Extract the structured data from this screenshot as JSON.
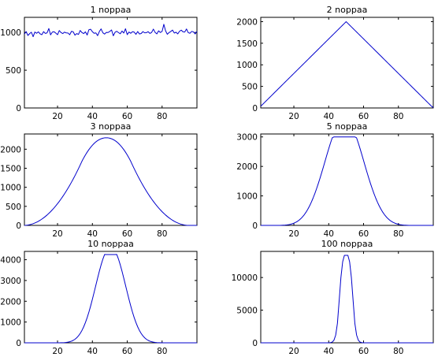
{
  "figure": {
    "colors": {
      "line": "#0000cc",
      "axes": "#000000",
      "background": "#ffffff"
    }
  },
  "chart_data": [
    {
      "type": "line",
      "title": "1 noppaa",
      "xlim": [
        1,
        100
      ],
      "ylim": [
        0,
        1200
      ],
      "xticks": [
        20,
        40,
        60,
        80
      ],
      "yticks": [
        0,
        500,
        1000
      ],
      "grid": false,
      "series": [
        {
          "x_start": 1,
          "x_step": 1,
          "values": [
            978,
            1012,
            960,
            985,
            1003,
            944,
            1006,
            989,
            1008,
            982,
            970,
            1011,
            987,
            994,
            1052,
            968,
            1004,
            1009,
            991,
            970,
            1025,
            998,
            985,
            1004,
            994,
            992,
            970,
            1015,
            1008,
            964,
            985,
            974,
            1026,
            999,
            985,
            1008,
            966,
            1036,
            1042,
            1010,
            989,
            994,
            958,
            1012,
            1047,
            996,
            978,
            1001,
            999,
            1014,
            1033,
            956,
            1002,
            1015,
            998,
            983,
            1019,
            992,
            1049,
            971,
            1005,
            989,
            1010,
            1004,
            975,
            1012,
            980,
            986,
            1011,
            995,
            997,
            1010,
            987,
            1000,
            1044,
            1001,
            981,
            1021,
            999,
            1014,
            1108,
            1021,
            976,
            999,
            1013,
            1031,
            992,
            1003,
            981,
            1016,
            1030,
            1008,
            1005,
            1046,
            997,
            989,
            1014,
            1007,
            980,
            1014
          ]
        }
      ]
    },
    {
      "type": "line",
      "title": "2 noppaa",
      "xlim": [
        1,
        100
      ],
      "ylim": [
        0,
        2100
      ],
      "xticks": [
        20,
        40,
        60,
        80
      ],
      "yticks": [
        0,
        500,
        1000,
        1500,
        2000
      ],
      "grid": false,
      "series": [
        {
          "x_start": 1,
          "x_step": 1,
          "values": [
            40,
            80,
            120,
            160,
            200,
            240,
            280,
            320,
            360,
            400,
            440,
            480,
            520,
            560,
            600,
            640,
            680,
            720,
            760,
            800,
            840,
            880,
            920,
            960,
            1000,
            1040,
            1080,
            1120,
            1160,
            1200,
            1240,
            1280,
            1320,
            1360,
            1400,
            1440,
            1480,
            1520,
            1560,
            1600,
            1640,
            1680,
            1720,
            1760,
            1800,
            1840,
            1880,
            1920,
            1960,
            2000,
            1960,
            1920,
            1880,
            1840,
            1800,
            1760,
            1720,
            1680,
            1640,
            1600,
            1560,
            1520,
            1480,
            1440,
            1400,
            1360,
            1320,
            1280,
            1240,
            1200,
            1160,
            1120,
            1080,
            1040,
            1000,
            960,
            920,
            880,
            840,
            800,
            760,
            720,
            680,
            640,
            600,
            560,
            520,
            480,
            440,
            400,
            360,
            320,
            280,
            240,
            200,
            160,
            120,
            80,
            40,
            10
          ]
        }
      ]
    },
    {
      "type": "line",
      "title": "3 noppaa",
      "xlim": [
        1,
        100
      ],
      "ylim": [
        0,
        2400
      ],
      "xticks": [
        20,
        40,
        60,
        80
      ],
      "yticks": [
        0,
        500,
        1000,
        1500,
        2000
      ],
      "grid": false,
      "series": [
        {
          "x_start": 1,
          "x_step": 1,
          "values": [
            0,
            3,
            9,
            18,
            30,
            45,
            63,
            84,
            108,
            135,
            165,
            198,
            234,
            273,
            315,
            360,
            408,
            459,
            513,
            570,
            630,
            693,
            759,
            828,
            900,
            975,
            1053,
            1134,
            1218,
            1305,
            1395,
            1488,
            1584,
            1683,
            1770,
            1850,
            1923,
            1990,
            2050,
            2104,
            2151,
            2192,
            2226,
            2253,
            2274,
            2289,
            2298,
            2300,
            2298,
            2289,
            2274,
            2253,
            2226,
            2192,
            2151,
            2104,
            2050,
            1990,
            1923,
            1850,
            1770,
            1683,
            1584,
            1488,
            1395,
            1305,
            1218,
            1134,
            1053,
            975,
            900,
            828,
            759,
            693,
            630,
            570,
            513,
            459,
            408,
            360,
            315,
            273,
            234,
            198,
            165,
            135,
            108,
            84,
            63,
            45,
            30,
            18,
            9,
            3,
            1,
            0,
            0,
            0,
            0,
            0
          ]
        }
      ]
    },
    {
      "type": "line",
      "title": "5 noppaa",
      "xlim": [
        1,
        100
      ],
      "ylim": [
        0,
        3100
      ],
      "xticks": [
        20,
        40,
        60,
        80
      ],
      "yticks": [
        0,
        1000,
        2000,
        3000
      ],
      "grid": false,
      "series": [
        {
          "x_start": 1,
          "x_step": 1,
          "values": [
            0,
            0,
            0,
            0,
            0,
            0,
            0,
            0,
            0,
            0,
            0,
            1,
            3,
            6,
            10,
            16,
            25,
            37,
            53,
            74,
            101,
            135,
            177,
            229,
            291,
            364,
            449,
            547,
            658,
            783,
            922,
            1074,
            1239,
            1415,
            1601,
            1795,
            1995,
            2198,
            2401,
            2600,
            2790,
            2967,
            3000,
            3000,
            3000,
            3000,
            3000,
            3000,
            3000,
            3000,
            3000,
            3000,
            3000,
            3000,
            3000,
            2967,
            2790,
            2600,
            2401,
            2198,
            1995,
            1795,
            1601,
            1415,
            1239,
            1074,
            922,
            783,
            658,
            547,
            449,
            364,
            291,
            229,
            177,
            135,
            101,
            74,
            53,
            37,
            25,
            16,
            10,
            6,
            3,
            1,
            0,
            0,
            0,
            0,
            0,
            0,
            0,
            0,
            0,
            0,
            0,
            0,
            0,
            0
          ]
        }
      ]
    },
    {
      "type": "line",
      "title": "10 noppaa",
      "xlim": [
        1,
        100
      ],
      "ylim": [
        0,
        4400
      ],
      "xticks": [
        20,
        40,
        60,
        80
      ],
      "yticks": [
        0,
        1000,
        2000,
        3000,
        4000
      ],
      "grid": false,
      "series": [
        {
          "x_start": 1,
          "x_step": 1,
          "values": [
            0,
            0,
            0,
            0,
            0,
            0,
            0,
            0,
            0,
            0,
            0,
            0,
            0,
            0,
            0,
            0,
            0,
            0,
            0,
            0,
            1,
            3,
            6,
            11,
            19,
            32,
            51,
            79,
            118,
            171,
            242,
            334,
            450,
            594,
            768,
            974,
            1212,
            1480,
            1776,
            2095,
            2430,
            2773,
            3115,
            3445,
            3752,
            4024,
            4252,
            4250,
            4250,
            4250,
            4250,
            4250,
            4250,
            4252,
            4024,
            3752,
            3445,
            3115,
            2773,
            2430,
            2095,
            1776,
            1480,
            1212,
            974,
            768,
            594,
            450,
            334,
            242,
            171,
            118,
            79,
            51,
            32,
            19,
            11,
            6,
            3,
            1,
            0,
            0,
            0,
            0,
            0,
            0,
            0,
            0,
            0,
            0,
            0,
            0,
            0,
            0,
            0,
            0,
            0,
            0,
            0,
            0
          ]
        }
      ]
    },
    {
      "type": "line",
      "title": "100 noppaa",
      "xlim": [
        1,
        100
      ],
      "ylim": [
        0,
        14000
      ],
      "xticks": [
        20,
        40,
        60,
        80
      ],
      "yticks": [
        0,
        5000,
        10000
      ],
      "grid": false,
      "series": [
        {
          "x_start": 1,
          "x_step": 1,
          "values": [
            0,
            0,
            0,
            0,
            0,
            0,
            0,
            0,
            0,
            0,
            0,
            0,
            0,
            0,
            0,
            0,
            0,
            0,
            0,
            0,
            0,
            0,
            0,
            0,
            0,
            0,
            0,
            0,
            0,
            0,
            0,
            0,
            0,
            0,
            0,
            0,
            0,
            0,
            1,
            6,
            28,
            114,
            396,
            1175,
            2981,
            6471,
            10007,
            12400,
            13400,
            13400,
            13400,
            12400,
            10007,
            6471,
            2981,
            1175,
            396,
            114,
            28,
            6,
            1,
            0,
            0,
            0,
            0,
            0,
            0,
            0,
            0,
            0,
            0,
            0,
            0,
            0,
            0,
            0,
            0,
            0,
            0,
            0,
            0,
            0,
            0,
            0,
            0,
            0,
            0,
            0,
            0,
            0,
            0,
            0,
            0,
            0,
            0,
            0,
            0,
            0,
            0,
            0
          ]
        }
      ]
    }
  ]
}
